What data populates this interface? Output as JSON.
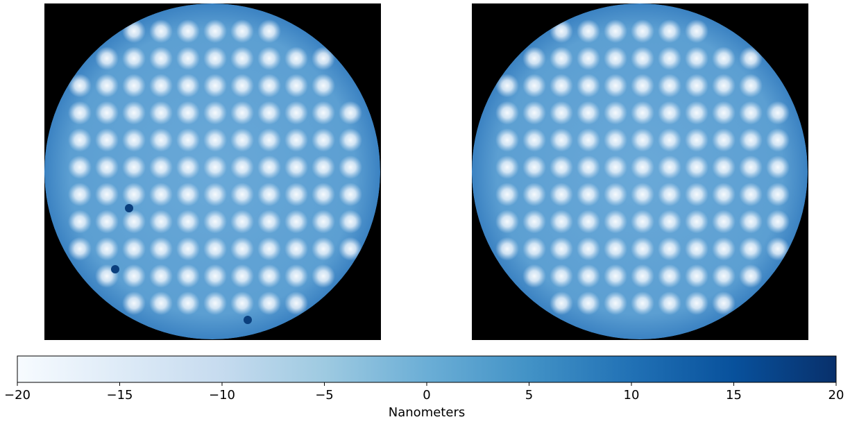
{
  "chart_data": {
    "type": "heatmap",
    "colorbar": {
      "label": "Nanometers",
      "colormap": "Blues",
      "lim": [
        -20,
        20
      ],
      "ticks": [
        {
          "value": -20,
          "label": "−20"
        },
        {
          "value": -15,
          "label": "−15"
        },
        {
          "value": -10,
          "label": "−10"
        },
        {
          "value": -5,
          "label": "−5"
        },
        0,
        5,
        10,
        15,
        20
      ]
    }
  }
}
